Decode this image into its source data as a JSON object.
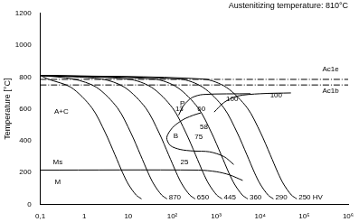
{
  "chart_data": {
    "type": "line",
    "title": "Austenitizing temperature: 810°C",
    "y_label": "Temperature [°C]",
    "log": "x",
    "grid": false,
    "xlim": [
      0.1,
      1000000
    ],
    "ylim": [
      0,
      1200
    ],
    "xticks": [
      {
        "value": 0.1,
        "label": "0,1"
      },
      1,
      10,
      {
        "value": 100,
        "label": "10²"
      },
      {
        "value": 1000,
        "label": "10³"
      },
      {
        "value": 10000,
        "label": "10⁴"
      },
      {
        "value": 100000,
        "label": "10⁵"
      },
      {
        "value": 1000000,
        "label": "10⁶"
      }
    ],
    "yticks": [
      0,
      200,
      400,
      600,
      800,
      1000,
      1200
    ],
    "series": [
      {
        "color": "#000000",
        "line_style": "solid",
        "values": [
          [
            0.1,
            810
          ],
          [
            0.15,
            787
          ],
          [
            0.5,
            735
          ],
          [
            1.5,
            605
          ],
          [
            3,
            450
          ],
          [
            5,
            310
          ],
          [
            7.5,
            196
          ],
          [
            10,
            127
          ],
          [
            15,
            59
          ],
          [
            20,
            34
          ]
        ]
      },
      {
        "color": "#000000",
        "line_style": "solid",
        "label": "870",
        "values": [
          [
            0.1,
            810
          ],
          [
            0.57,
            787
          ],
          [
            1.9,
            735
          ],
          [
            5.7,
            605
          ],
          [
            11.4,
            450
          ],
          [
            19,
            310
          ],
          [
            28.5,
            196
          ],
          [
            38,
            127
          ],
          [
            57,
            59
          ],
          [
            76,
            34
          ]
        ]
      },
      {
        "color": "#000000",
        "line_style": "solid",
        "label": "650",
        "values": [
          [
            0.1,
            810
          ],
          [
            2.5,
            787
          ],
          [
            8.3,
            735
          ],
          [
            25,
            605
          ],
          [
            50,
            450
          ],
          [
            83,
            310
          ],
          [
            125,
            196
          ],
          [
            166,
            127
          ],
          [
            249,
            59
          ],
          [
            332,
            34
          ]
        ]
      },
      {
        "color": "#000000",
        "line_style": "solid",
        "label": "445",
        "values": [
          [
            0.1,
            810
          ],
          [
            10,
            787
          ],
          [
            34,
            735
          ],
          [
            102,
            605
          ],
          [
            204,
            450
          ],
          [
            340,
            310
          ],
          [
            510,
            196
          ],
          [
            680,
            127
          ],
          [
            1020,
            59
          ],
          [
            1360,
            34
          ]
        ]
      },
      {
        "color": "#000000",
        "line_style": "solid",
        "label": "360",
        "values": [
          [
            0.1,
            810
          ],
          [
            39,
            787
          ],
          [
            130,
            735
          ],
          [
            390,
            605
          ],
          [
            780,
            450
          ],
          [
            1300,
            310
          ],
          [
            1950,
            196
          ],
          [
            2600,
            127
          ],
          [
            3900,
            59
          ],
          [
            5200,
            34
          ]
        ]
      },
      {
        "color": "#000000",
        "line_style": "solid",
        "label": "290",
        "values": [
          [
            0.1,
            810
          ],
          [
            150,
            787
          ],
          [
            500,
            735
          ],
          [
            1500,
            605
          ],
          [
            3000,
            450
          ],
          [
            5000,
            310
          ],
          [
            7500,
            196
          ],
          [
            10000,
            127
          ],
          [
            15000,
            59
          ],
          [
            20000,
            34
          ]
        ]
      },
      {
        "color": "#000000",
        "line_style": "solid",
        "label": "250 HV",
        "values": [
          [
            0.1,
            810
          ],
          [
            510,
            787
          ],
          [
            1700,
            735
          ],
          [
            5100,
            605
          ],
          [
            10200,
            450
          ],
          [
            17000,
            310
          ],
          [
            25500,
            196
          ],
          [
            34000,
            127
          ],
          [
            51000,
            59
          ],
          [
            68000,
            34
          ]
        ]
      },
      {
        "color": "#000000",
        "line_style": "dashdot",
        "values": [
          [
            0.1,
            785
          ],
          [
            1000000,
            785
          ]
        ]
      },
      {
        "color": "#000000",
        "line_style": "dashdot",
        "values": [
          [
            0.1,
            750
          ],
          [
            1000000,
            750
          ]
        ]
      },
      {
        "color": "#000000",
        "line_style": "solid",
        "values": [
          [
            0.1,
            215
          ],
          [
            400,
            215
          ],
          [
            1000,
            205
          ],
          [
            2000,
            185
          ],
          [
            4000,
            150
          ]
        ]
      },
      {
        "color": "#000000",
        "line_style": "solid",
        "values": [
          [
            140,
            560
          ],
          [
            180,
            620
          ],
          [
            280,
            670
          ],
          [
            500,
            690
          ],
          [
            6000,
            695
          ]
        ]
      },
      {
        "color": "#000000",
        "line_style": "solid",
        "values": [
          [
            900,
            580
          ],
          [
            1500,
            640
          ],
          [
            3000,
            680
          ],
          [
            10000,
            695
          ],
          [
            50000,
            700
          ]
        ]
      },
      {
        "color": "#000000",
        "line_style": "solid",
        "values": [
          [
            200,
            540
          ],
          [
            150,
            520
          ],
          [
            100,
            480
          ],
          [
            75,
            420
          ],
          [
            90,
            370
          ],
          [
            150,
            345
          ],
          [
            300,
            335
          ],
          [
            700,
            330
          ],
          [
            1500,
            300
          ],
          [
            2500,
            250
          ]
        ]
      },
      {
        "color": "#000000",
        "line_style": "solid",
        "values": [
          [
            200,
            540
          ],
          [
            300,
            560
          ],
          [
            450,
            575
          ]
        ]
      }
    ],
    "annotations": [
      {
        "text": "A+C",
        "x": 0.3,
        "y": 580
      },
      {
        "text": "Ms",
        "x": 0.25,
        "y": 265
      },
      {
        "text": "M",
        "x": 0.25,
        "y": 140
      },
      {
        "text": "P",
        "x": 170,
        "y": 635
      },
      {
        "text": "B",
        "x": 120,
        "y": 430
      },
      {
        "text": "13",
        "x": 145,
        "y": 597
      },
      {
        "text": "60",
        "x": 460,
        "y": 597
      },
      {
        "text": "100",
        "x": 2300,
        "y": 663
      },
      {
        "text": "100",
        "x": 23000,
        "y": 685
      },
      {
        "text": "58",
        "x": 525,
        "y": 488
      },
      {
        "text": "75",
        "x": 400,
        "y": 422
      },
      {
        "text": "25",
        "x": 190,
        "y": 263
      },
      {
        "text": "Ac1e",
        "x": 400000,
        "y": 850
      },
      {
        "text": "Ac1b",
        "x": 400000,
        "y": 715
      }
    ]
  }
}
